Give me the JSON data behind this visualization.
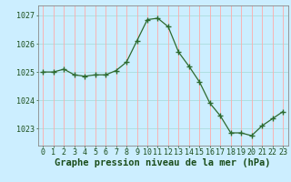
{
  "x": [
    0,
    1,
    2,
    3,
    4,
    5,
    6,
    7,
    8,
    9,
    10,
    11,
    12,
    13,
    14,
    15,
    16,
    17,
    18,
    19,
    20,
    21,
    22,
    23
  ],
  "y": [
    1025.0,
    1025.0,
    1025.1,
    1024.9,
    1024.85,
    1024.9,
    1024.9,
    1025.05,
    1025.35,
    1026.1,
    1026.85,
    1026.9,
    1026.6,
    1025.7,
    1025.2,
    1024.65,
    1023.9,
    1023.45,
    1022.85,
    1022.85,
    1022.75,
    1023.1,
    1023.35,
    1023.6
  ],
  "line_color": "#2d6a2d",
  "marker": "+",
  "marker_size": 4,
  "bg_color": "#cceeff",
  "grid_color_h": "#aadddd",
  "grid_color_v": "#ffaaaa",
  "ylabel_ticks": [
    1023,
    1024,
    1025,
    1026,
    1027
  ],
  "xlabel_label": "Graphe pression niveau de la mer (hPa)",
  "ylim": [
    1022.4,
    1027.35
  ],
  "xlim": [
    -0.5,
    23.5
  ],
  "label_fontsize": 7,
  "tick_fontsize": 6,
  "xlabel_fontsize": 7.5
}
